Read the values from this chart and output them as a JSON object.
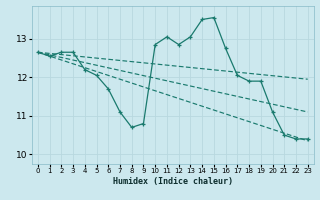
{
  "xlabel": "Humidex (Indice chaleur)",
  "bg_color": "#cce8ee",
  "grid_color": "#b8d8df",
  "line_color": "#1a7a6e",
  "xlim": [
    -0.5,
    23.5
  ],
  "ylim": [
    9.75,
    13.85
  ],
  "yticks": [
    10,
    11,
    12,
    13
  ],
  "xticks": [
    0,
    1,
    2,
    3,
    4,
    5,
    6,
    7,
    8,
    9,
    10,
    11,
    12,
    13,
    14,
    15,
    16,
    17,
    18,
    19,
    20,
    21,
    22,
    23
  ],
  "main_line": {
    "x": [
      0,
      1,
      2,
      3,
      4,
      5,
      6,
      7,
      8,
      9,
      10,
      11,
      12,
      13,
      14,
      15,
      16,
      17,
      18,
      19,
      20,
      21,
      22,
      23
    ],
    "y": [
      12.65,
      12.55,
      12.65,
      12.65,
      12.2,
      12.05,
      11.7,
      11.1,
      10.7,
      10.8,
      12.85,
      13.05,
      12.85,
      13.05,
      13.5,
      13.55,
      12.75,
      12.05,
      11.9,
      11.9,
      11.1,
      10.5,
      10.4,
      10.4
    ]
  },
  "dash_lines": [
    {
      "x": [
        0,
        23
      ],
      "y": [
        12.65,
        10.35
      ]
    },
    {
      "x": [
        0,
        23
      ],
      "y": [
        12.65,
        11.95
      ]
    },
    {
      "x": [
        0,
        23
      ],
      "y": [
        12.65,
        11.1
      ]
    }
  ]
}
